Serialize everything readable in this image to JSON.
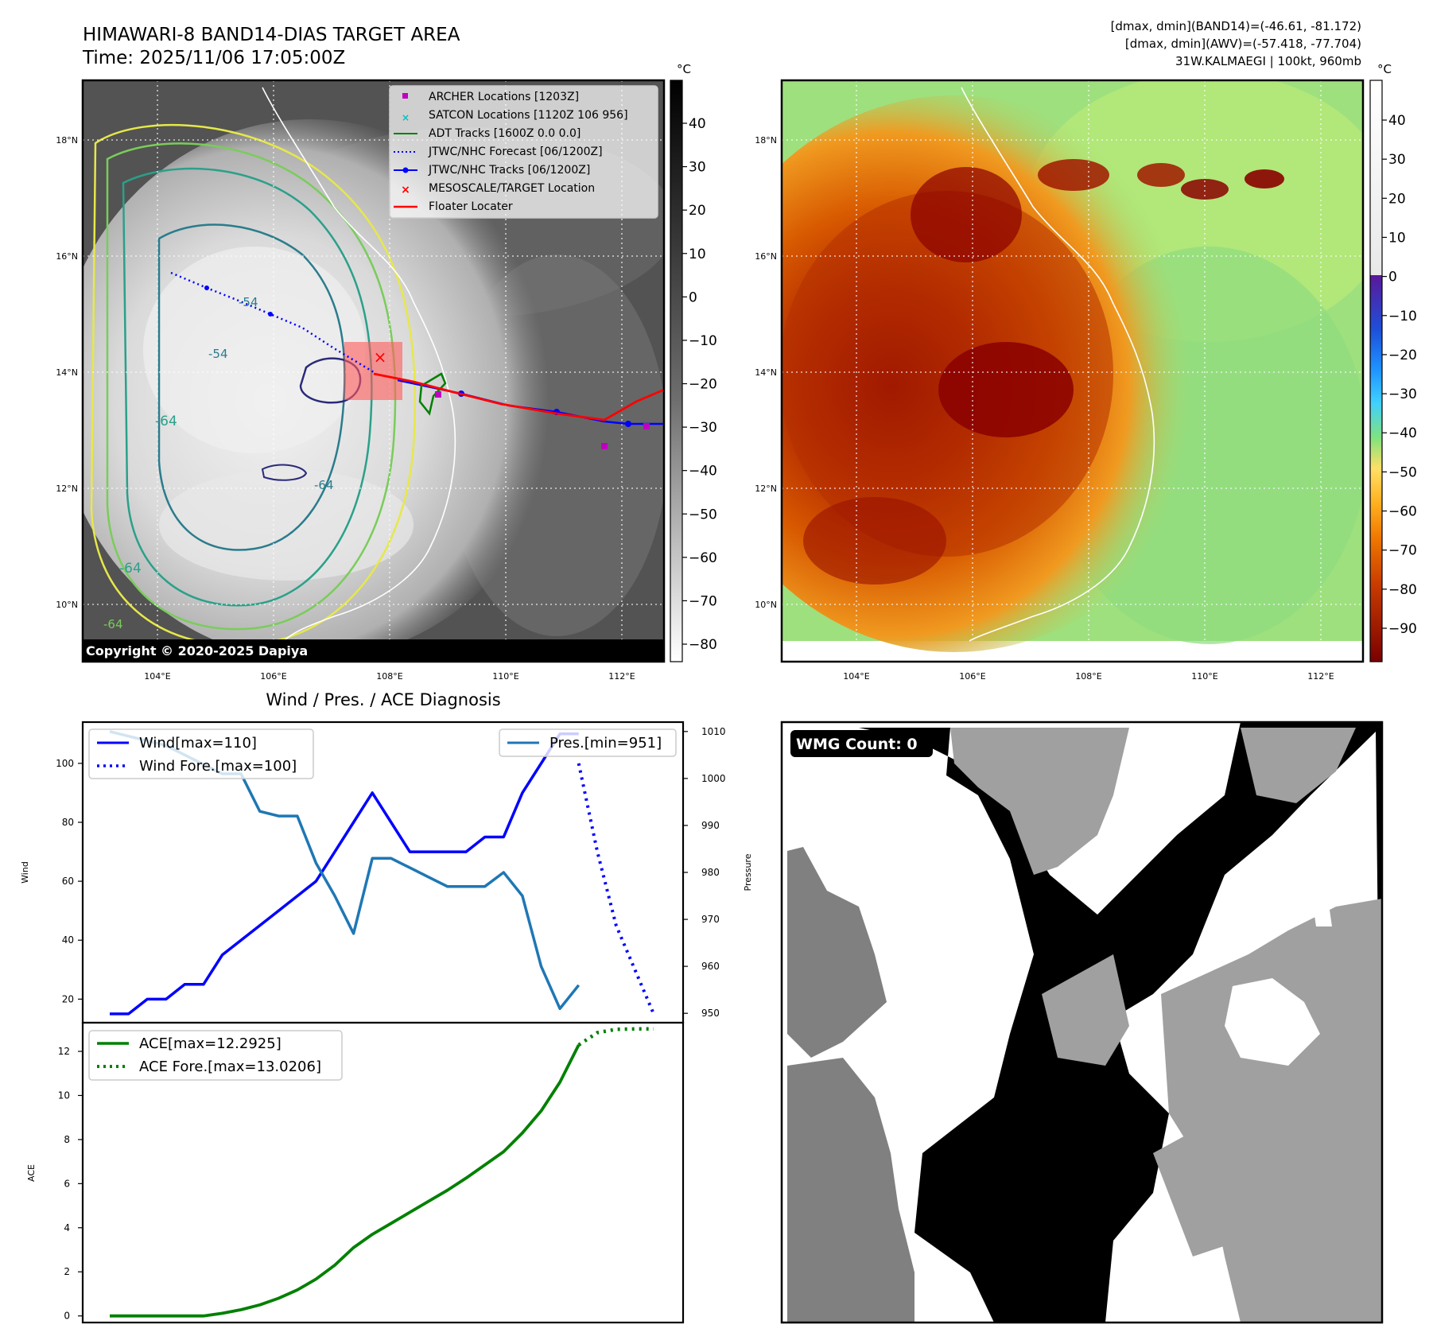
{
  "header": {
    "title_line1": "HIMAWARI-8 BAND14-DIAS TARGET AREA",
    "title_line2": "Time: 2025/11/06 17:05:00Z",
    "info_line1": "[dmax, dmin](BAND14)=(-46.61, -81.172)",
    "info_line2": "[dmax, dmin](AWV)=(-57.418, -77.704)",
    "info_line3": "31W.KALMAEGI | 100kt, 960mb"
  },
  "copyright": "Copyright © 2020-2025 Dapiya",
  "units": "°C",
  "colors": {
    "wind": "#0000ff",
    "pressure": "#1f77b4",
    "ace": "#008000",
    "archer": "#c000c0",
    "satcon": "#00c0c0",
    "adt": "#008000",
    "jtwc_forecast": "#0000ff",
    "jtwc_tracks": "#0000ff",
    "target": "#ff0000",
    "floater": "#ff0000"
  },
  "map_axes": {
    "lon_ticks": [
      "104°E",
      "106°E",
      "108°E",
      "110°E",
      "112°E"
    ],
    "lat_ticks": [
      "18°N",
      "16°N",
      "14°N",
      "12°N",
      "10°N"
    ]
  },
  "ir_legend": [
    {
      "label": "ARCHER Locations [1203Z]",
      "icon": "square-marker-icon"
    },
    {
      "label": "SATCON Locations [1120Z 106 956]",
      "icon": "x-marker-icon"
    },
    {
      "label": "ADT Tracks [1600Z 0.0 0.0]",
      "icon": "line-icon"
    },
    {
      "label": "JTWC/NHC Forecast [06/1200Z]",
      "icon": "dotted-line-icon"
    },
    {
      "label": "JTWC/NHC Tracks [06/1200Z]",
      "icon": "line-dot-icon"
    },
    {
      "label": "MESOSCALE/TARGET Location",
      "icon": "x-marker-icon"
    },
    {
      "label": "Floater Locater",
      "icon": "line-icon"
    }
  ],
  "contour_labels": [
    "-64",
    "-64",
    "-64",
    "-54",
    "-54",
    "-64"
  ],
  "ir_colorbar_ticks": [
    "40",
    "30",
    "20",
    "10",
    "0",
    "−10",
    "−20",
    "−30",
    "−40",
    "−50",
    "−60",
    "−70",
    "−80"
  ],
  "awv_colorbar_ticks": [
    "40",
    "30",
    "20",
    "10",
    "0",
    "−10",
    "−20",
    "−30",
    "−40",
    "−50",
    "−60",
    "−70",
    "−80",
    "−90"
  ],
  "diagnosis_title": "Wind / Pres. / ACE Diagnosis",
  "wmg": {
    "label": "WMG Count: 0"
  },
  "chart_data": [
    {
      "type": "line",
      "title": "Wind / Pres. / ACE Diagnosis",
      "ylabel": "Wind",
      "y2label": "Pressure",
      "ylim": [
        12,
        114
      ],
      "y2lim": [
        948,
        1012
      ],
      "yticks": [
        "20",
        "40",
        "60",
        "80",
        "100"
      ],
      "y2ticks": [
        "950",
        "960",
        "970",
        "980",
        "990",
        "1000",
        "1010"
      ],
      "series": [
        {
          "name": "Wind[max=110]",
          "style": "solid",
          "axis": "left",
          "x": [
            0,
            1,
            2,
            3,
            4,
            5,
            6,
            7,
            8,
            9,
            10,
            11,
            12,
            13,
            14,
            15,
            16,
            17,
            18,
            19,
            20,
            21,
            22,
            23,
            24,
            25
          ],
          "values": [
            15,
            15,
            20,
            20,
            25,
            25,
            35,
            40,
            45,
            50,
            55,
            60,
            70,
            80,
            90,
            80,
            70,
            70,
            70,
            70,
            75,
            75,
            90,
            100,
            110,
            110
          ]
        },
        {
          "name": "Wind Fore.[max=100]",
          "style": "dotted",
          "axis": "left",
          "x": [
            25,
            26,
            27,
            28,
            29
          ],
          "values": [
            100,
            70,
            45,
            30,
            15
          ]
        },
        {
          "name": "Pres.[min=951]",
          "style": "solid",
          "axis": "right",
          "x": [
            0,
            1,
            2,
            3,
            4,
            5,
            6,
            7,
            8,
            9,
            10,
            11,
            12,
            13,
            14,
            15,
            16,
            17,
            18,
            19,
            20,
            21,
            22,
            23,
            24,
            25
          ],
          "values": [
            1010,
            1009,
            1008,
            1007,
            1005,
            1003,
            1001,
            1001,
            993,
            992,
            992,
            982,
            975,
            967,
            983,
            983,
            981,
            979,
            977,
            977,
            977,
            980,
            975,
            960,
            951,
            956
          ]
        }
      ]
    },
    {
      "type": "line",
      "ylabel": "ACE",
      "ylim": [
        -0.3,
        13.3
      ],
      "yticks": [
        "0",
        "2",
        "4",
        "6",
        "8",
        "10",
        "12"
      ],
      "series": [
        {
          "name": "ACE[max=12.2925]",
          "style": "solid",
          "x": [
            0,
            1,
            2,
            3,
            4,
            5,
            6,
            7,
            8,
            9,
            10,
            11,
            12,
            13,
            14,
            15,
            16,
            17,
            18,
            19,
            20,
            21,
            22,
            23,
            24,
            25
          ],
          "values": [
            0,
            0,
            0,
            0,
            0,
            0,
            0.12,
            0.28,
            0.5,
            0.8,
            1.18,
            1.67,
            2.3,
            3.1,
            3.7,
            4.2,
            4.7,
            5.2,
            5.7,
            6.25,
            6.85,
            7.45,
            8.3,
            9.3,
            10.6,
            12.29
          ]
        },
        {
          "name": "ACE Fore.[max=13.0206]",
          "style": "dotted",
          "x": [
            25,
            26,
            27,
            28,
            29
          ],
          "values": [
            12.29,
            12.85,
            13.0,
            13.02,
            13.02
          ]
        }
      ]
    }
  ]
}
